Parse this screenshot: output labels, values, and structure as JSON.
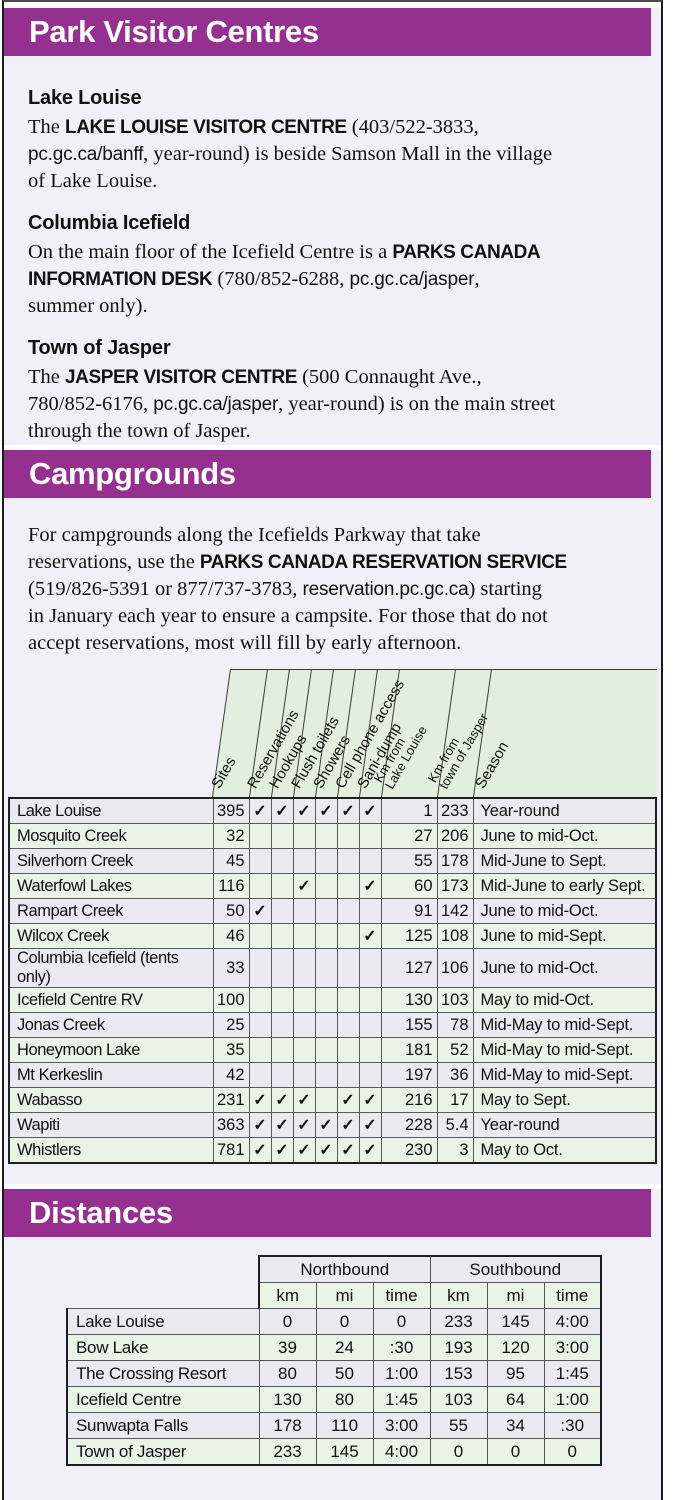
{
  "theme": {
    "banner_purple": "#953090",
    "page_background": "#f1eff7",
    "row_gray": "#ebe9f1",
    "row_green": "#e9f3e6",
    "header_green": "#e2efde",
    "banner_text": "#ffffff"
  },
  "sections": {
    "visitor_centres": {
      "title": "Park Visitor Centres",
      "entries": [
        {
          "heading": "Lake Louise",
          "lines": [
            [
              {
                "t": "The ",
                "s": "serif"
              },
              {
                "t": "LAKE LOUISE VISITOR CENTRE",
                "s": "bold"
              },
              {
                "t": " (403/522-3833,",
                "s": "serif"
              }
            ],
            [
              {
                "t": "pc.gc.ca/banff",
                "s": "sans"
              },
              {
                "t": ", year-round) is beside Samson Mall in the village",
                "s": "serif"
              }
            ],
            [
              {
                "t": "of Lake Louise.",
                "s": "serif"
              }
            ]
          ]
        },
        {
          "heading": "Columbia Icefield",
          "lines": [
            [
              {
                "t": "On the main floor of the Icefield Centre is a ",
                "s": "serif"
              },
              {
                "t": "PARKS CANADA",
                "s": "bold"
              }
            ],
            [
              {
                "t": "INFORMATION DESK",
                "s": "bold"
              },
              {
                "t": " (780/852-6288, ",
                "s": "serif"
              },
              {
                "t": "pc.gc.ca/jasper",
                "s": "sans"
              },
              {
                "t": ",",
                "s": "serif"
              }
            ],
            [
              {
                "t": "summer only).",
                "s": "serif"
              }
            ]
          ]
        },
        {
          "heading": "Town of Jasper",
          "lines": [
            [
              {
                "t": "The ",
                "s": "serif"
              },
              {
                "t": "JASPER VISITOR CENTRE",
                "s": "bold"
              },
              {
                "t": " (500 Connaught Ave.,",
                "s": "serif"
              }
            ],
            [
              {
                "t": "780/852-6176, ",
                "s": "serif"
              },
              {
                "t": "pc.gc.ca/jasper",
                "s": "sans"
              },
              {
                "t": ", year-round) is on the main street",
                "s": "serif"
              }
            ],
            [
              {
                "t": "through the town of Jasper.",
                "s": "serif"
              }
            ]
          ]
        }
      ]
    },
    "campgrounds": {
      "title": "Campgrounds",
      "intro_lines": [
        [
          {
            "t": "For campgrounds along the Icefields Parkway that take",
            "s": "serif"
          }
        ],
        [
          {
            "t": "reservations, use the ",
            "s": "serif"
          },
          {
            "t": "PARKS CANADA RESERVATION SERVICE",
            "s": "bold"
          }
        ],
        [
          {
            "t": "(519/826-5391 or 877/737-3783, ",
            "s": "serif"
          },
          {
            "t": "reservation.pc.gc.ca",
            "s": "sans"
          },
          {
            "t": ") starting",
            "s": "serif"
          }
        ],
        [
          {
            "t": "in January each year to ensure a campsite. For those that do not",
            "s": "serif"
          }
        ],
        [
          {
            "t": "accept reservations, most will fill by early afternoon.",
            "s": "serif"
          }
        ]
      ],
      "table": {
        "columns": [
          "Sites",
          "Reservations",
          "Hookups",
          "Flush toilets",
          "Showers",
          "Cell phone access",
          "Sani-dump",
          "Km from|Lake Louise",
          "Km from|town of Jasper",
          "Season"
        ],
        "check_glyph": "✓",
        "rows": [
          {
            "name": "Lake Louise",
            "sites": "395",
            "checks": [
              1,
              1,
              1,
              1,
              1,
              1
            ],
            "km_from_lake_louise": "1",
            "km_from_jasper": "233",
            "season": "Year-round"
          },
          {
            "name": "Mosquito Creek",
            "sites": "32",
            "checks": [
              0,
              0,
              0,
              0,
              0,
              0
            ],
            "km_from_lake_louise": "27",
            "km_from_jasper": "206",
            "season": "June to mid-Oct."
          },
          {
            "name": "Silverhorn Creek",
            "sites": "45",
            "checks": [
              0,
              0,
              0,
              0,
              0,
              0
            ],
            "km_from_lake_louise": "55",
            "km_from_jasper": "178",
            "season": "Mid-June to Sept."
          },
          {
            "name": "Waterfowl Lakes",
            "sites": "116",
            "checks": [
              0,
              0,
              1,
              0,
              0,
              1
            ],
            "km_from_lake_louise": "60",
            "km_from_jasper": "173",
            "season": "Mid-June to early Sept."
          },
          {
            "name": "Rampart Creek",
            "sites": "50",
            "checks": [
              1,
              0,
              0,
              0,
              0,
              0
            ],
            "km_from_lake_louise": "91",
            "km_from_jasper": "142",
            "season": "June to mid-Oct."
          },
          {
            "name": "Wilcox Creek",
            "sites": "46",
            "checks": [
              0,
              0,
              0,
              0,
              0,
              1
            ],
            "km_from_lake_louise": "125",
            "km_from_jasper": "108",
            "season": "June to mid-Sept."
          },
          {
            "name": "Columbia Icefield (tents only)",
            "sites": "33",
            "checks": [
              0,
              0,
              0,
              0,
              0,
              0
            ],
            "km_from_lake_louise": "127",
            "km_from_jasper": "106",
            "season": "June to mid-Oct."
          },
          {
            "name": "Icefield Centre RV",
            "sites": "100",
            "checks": [
              0,
              0,
              0,
              0,
              0,
              0
            ],
            "km_from_lake_louise": "130",
            "km_from_jasper": "103",
            "season": "May to mid-Oct."
          },
          {
            "name": "Jonas Creek",
            "sites": "25",
            "checks": [
              0,
              0,
              0,
              0,
              0,
              0
            ],
            "km_from_lake_louise": "155",
            "km_from_jasper": "78",
            "season": "Mid-May to mid-Sept."
          },
          {
            "name": "Honeymoon Lake",
            "sites": "35",
            "checks": [
              0,
              0,
              0,
              0,
              0,
              0
            ],
            "km_from_lake_louise": "181",
            "km_from_jasper": "52",
            "season": "Mid-May to mid-Sept."
          },
          {
            "name": "Mt Kerkeslin",
            "sites": "42",
            "checks": [
              0,
              0,
              0,
              0,
              0,
              0
            ],
            "km_from_lake_louise": "197",
            "km_from_jasper": "36",
            "season": "Mid-May to mid-Sept."
          },
          {
            "name": "Wabasso",
            "sites": "231",
            "checks": [
              1,
              1,
              1,
              0,
              1,
              1
            ],
            "km_from_lake_louise": "216",
            "km_from_jasper": "17",
            "season": "May to Sept."
          },
          {
            "name": "Wapiti",
            "sites": "363",
            "checks": [
              1,
              1,
              1,
              1,
              1,
              1
            ],
            "km_from_lake_louise": "228",
            "km_from_jasper": "5.4",
            "season": "Year-round"
          },
          {
            "name": "Whistlers",
            "sites": "781",
            "checks": [
              1,
              1,
              1,
              1,
              1,
              1
            ],
            "km_from_lake_louise": "230",
            "km_from_jasper": "3",
            "season": "May to Oct."
          }
        ]
      }
    },
    "distances": {
      "title": "Distances",
      "table": {
        "group_headers": [
          "Northbound",
          "Southbound"
        ],
        "unit_headers": [
          "km",
          "mi",
          "time"
        ],
        "rows": [
          {
            "name": "Lake Louise",
            "values": [
              "0",
              "0",
              "0",
              "233",
              "145",
              "4:00"
            ]
          },
          {
            "name": "Bow Lake",
            "values": [
              "39",
              "24",
              ":30",
              "193",
              "120",
              "3:00"
            ]
          },
          {
            "name": "The Crossing Resort",
            "values": [
              "80",
              "50",
              "1:00",
              "153",
              "95",
              "1:45"
            ]
          },
          {
            "name": "Icefield Centre",
            "values": [
              "130",
              "80",
              "1:45",
              "103",
              "64",
              "1:00"
            ]
          },
          {
            "name": "Sunwapta Falls",
            "values": [
              "178",
              "110",
              "3:00",
              "55",
              "34",
              ":30"
            ]
          },
          {
            "name": "Town of Jasper",
            "values": [
              "233",
              "145",
              "4:00",
              "0",
              "0",
              "0"
            ]
          }
        ]
      }
    }
  }
}
